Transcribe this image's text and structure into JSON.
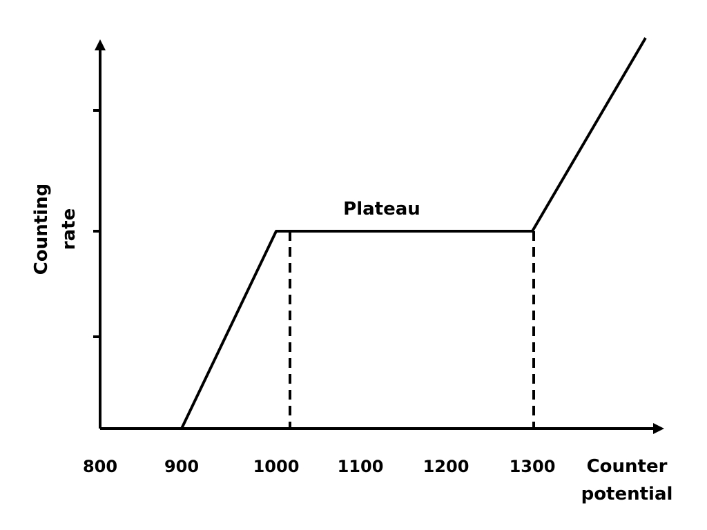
{
  "chart_data": {
    "type": "line",
    "xlabel_lines": [
      "Counter",
      "potential"
    ],
    "ylabel_lines": [
      "Counting",
      "rate"
    ],
    "x_ticks": [
      "800",
      "900",
      "1000",
      "1100",
      "1200",
      "1300"
    ],
    "xlim": [
      800,
      1450
    ],
    "ylim": [
      0,
      4.2
    ],
    "y_ticks_count": 3,
    "y_ticks": [
      1,
      2,
      3
    ],
    "series": [
      {
        "x": [
          900,
          1000,
          1300,
          1450
        ],
        "y": [
          0,
          2,
          2,
          3.6
        ]
      }
    ],
    "plateau_bounds": [
      1000,
      1300
    ],
    "annotations": [
      {
        "text": "Plateau",
        "x": 1150,
        "y": 2
      }
    ],
    "grid": false,
    "colors": {
      "line": "#000000",
      "background": "#ffffff"
    }
  }
}
